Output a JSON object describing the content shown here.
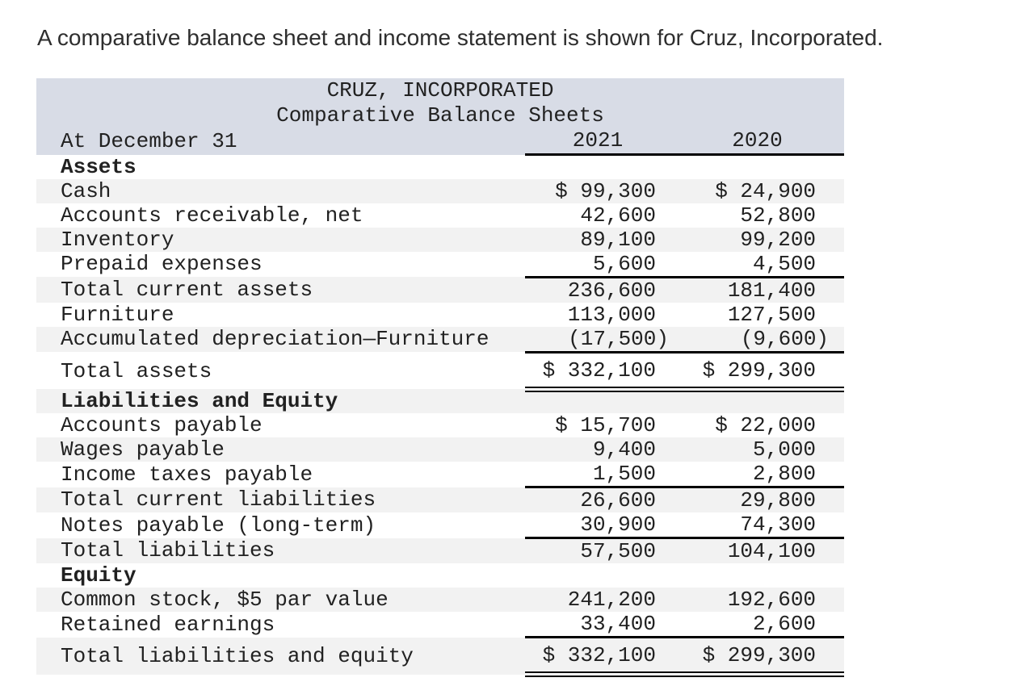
{
  "intro": "A comparative balance sheet and income statement is shown for Cruz, Incorporated.",
  "colors": {
    "header_band": "#d8dce6",
    "row_stripe": "#f2f2f2",
    "rule": "#000000",
    "text": "#212121"
  },
  "balance_sheet": {
    "company": "CRUZ, INCORPORATED",
    "subtitle": "Comparative Balance Sheets",
    "date_label": "At December 31",
    "columns": [
      "2021",
      "2020"
    ],
    "rows": [
      {
        "label": "Assets",
        "v2021": "",
        "v2020": ""
      },
      {
        "label": "Cash",
        "v2021": "$ 99,300",
        "v2020": "$ 24,900"
      },
      {
        "label": "Accounts receivable, net",
        "v2021": "42,600",
        "v2020": "52,800"
      },
      {
        "label": "Inventory",
        "v2021": "89,100",
        "v2020": "99,200"
      },
      {
        "label": "Prepaid expenses",
        "v2021": "5,600",
        "v2020": "4,500"
      },
      {
        "label": "Total current assets",
        "v2021": "236,600",
        "v2020": "181,400"
      },
      {
        "label": "Furniture",
        "v2021": "113,000",
        "v2020": "127,500"
      },
      {
        "label": "Accumulated depreciation—Furniture",
        "v2021": "(17,500)",
        "v2020": "(9,600)"
      },
      {
        "label": "Total assets",
        "v2021": "$ 332,100",
        "v2020": "$ 299,300"
      },
      {
        "label": "Liabilities and Equity",
        "v2021": "",
        "v2020": ""
      },
      {
        "label": "Accounts payable",
        "v2021": "$ 15,700",
        "v2020": "$ 22,000"
      },
      {
        "label": "Wages payable",
        "v2021": "9,400",
        "v2020": "5,000"
      },
      {
        "label": "Income taxes payable",
        "v2021": "1,500",
        "v2020": "2,800"
      },
      {
        "label": "Total current liabilities",
        "v2021": "26,600",
        "v2020": "29,800"
      },
      {
        "label": "Notes payable (long-term)",
        "v2021": "30,900",
        "v2020": "74,300"
      },
      {
        "label": "Total liabilities",
        "v2021": "57,500",
        "v2020": "104,100"
      },
      {
        "label": "Equity",
        "v2021": "",
        "v2020": ""
      },
      {
        "label": "Common stock, $5 par value",
        "v2021": "241,200",
        "v2020": "192,600"
      },
      {
        "label": "Retained earnings",
        "v2021": "33,400",
        "v2020": "2,600"
      },
      {
        "label": "Total liabilities and equity",
        "v2021": "$ 332,100",
        "v2020": "$ 299,300"
      }
    ]
  }
}
